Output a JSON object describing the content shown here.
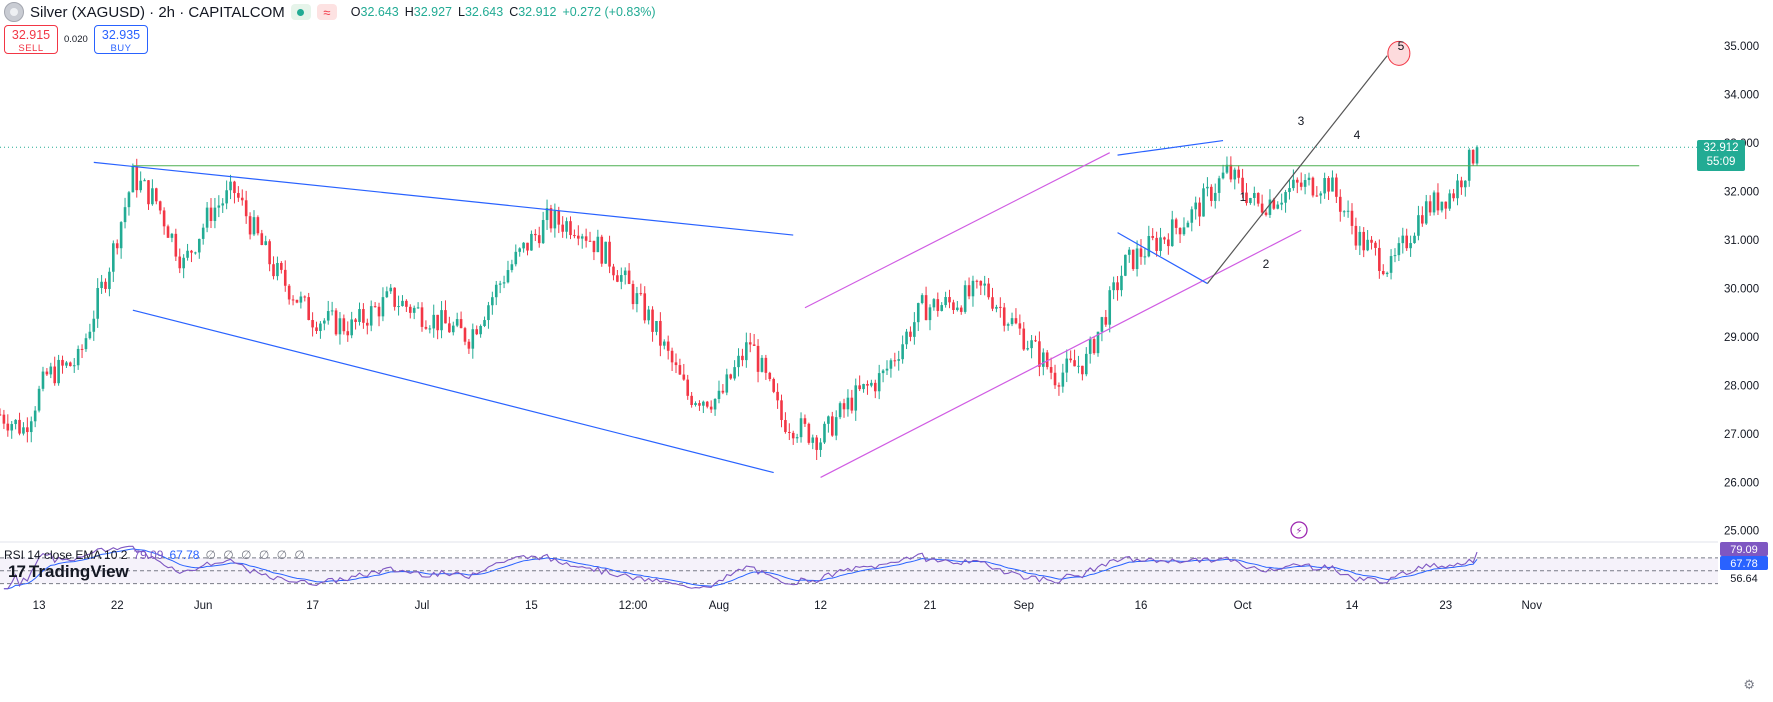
{
  "header": {
    "symbol_title": "Silver (XAGUSD) · 2h · CAPITALCOM",
    "wave_glyph": "≈",
    "ohlc": [
      {
        "k": "O",
        "v": "32.643"
      },
      {
        "k": "H",
        "v": "32.927"
      },
      {
        "k": "L",
        "v": "32.643"
      },
      {
        "k": "C",
        "v": "32.912"
      },
      {
        "k": "",
        "v": "+0.272 (+0.83%)"
      }
    ]
  },
  "quote": {
    "sell_price": "32.915",
    "sell_label": "SELL",
    "spread": "0.020",
    "buy_price": "32.935",
    "buy_label": "BUY"
  },
  "rsi_legend": {
    "label": "RSI 14 close EMA 10 2",
    "value1": "79.09",
    "value2": "67.78",
    "eye_icons": "∅ ∅ ∅ ∅ ∅ ∅"
  },
  "logo": {
    "mark": "17",
    "text": "TradingView"
  },
  "price_badge": {
    "price": "32.912",
    "countdown": "55:09"
  },
  "colors": {
    "up": "#22ab94",
    "down": "#f23645",
    "trend": "#2962ff",
    "channel": "#d05ce3",
    "support": "#4caf50",
    "rsi": "#7e57c2",
    "rsi_ema": "#2962ff"
  },
  "chart_data": {
    "type": "candlestick",
    "title": "",
    "y_axis": {
      "ticks": [
        "25.000",
        "26.000",
        "27.000",
        "28.000",
        "29.000",
        "30.000",
        "31.000",
        "32.000",
        "33.000",
        "34.000",
        "35.000"
      ],
      "range": [
        24.85,
        35.95
      ]
    },
    "x_axis": {
      "tick_labels": [
        "13",
        "22",
        "Jun",
        "17",
        "Jul",
        "15",
        "12:00",
        "Aug",
        "12",
        "21",
        "Sep",
        "16",
        "Oct",
        "14",
        "23",
        "Nov"
      ],
      "range_index": [
        0,
        400
      ]
    },
    "price_path": [
      [
        0,
        27.4
      ],
      [
        6,
        27.1
      ],
      [
        12,
        28.2
      ],
      [
        20,
        28.5
      ],
      [
        28,
        30.5
      ],
      [
        34,
        32.3
      ],
      [
        40,
        31.8
      ],
      [
        47,
        30.5
      ],
      [
        54,
        31.6
      ],
      [
        60,
        32.0
      ],
      [
        70,
        30.4
      ],
      [
        80,
        29.4
      ],
      [
        90,
        29.2
      ],
      [
        100,
        29.8
      ],
      [
        110,
        29.4
      ],
      [
        120,
        29.0
      ],
      [
        130,
        30.4
      ],
      [
        140,
        31.4
      ],
      [
        148,
        31.3
      ],
      [
        156,
        30.6
      ],
      [
        166,
        29.4
      ],
      [
        176,
        27.8
      ],
      [
        184,
        27.7
      ],
      [
        192,
        28.9
      ],
      [
        200,
        27.3
      ],
      [
        210,
        26.9
      ],
      [
        218,
        27.7
      ],
      [
        226,
        28.2
      ],
      [
        236,
        29.6
      ],
      [
        244,
        29.7
      ],
      [
        252,
        30.0
      ],
      [
        260,
        29.2
      ],
      [
        270,
        28.2
      ],
      [
        278,
        28.5
      ],
      [
        288,
        30.5
      ],
      [
        300,
        31.2
      ],
      [
        306,
        31.6
      ],
      [
        314,
        32.4
      ],
      [
        322,
        31.7
      ],
      [
        332,
        32.1
      ],
      [
        340,
        32.2
      ],
      [
        348,
        31.0
      ],
      [
        356,
        30.4
      ],
      [
        364,
        31.6
      ],
      [
        372,
        32.0
      ],
      [
        378,
        32.9
      ]
    ],
    "annotations": {
      "wave_labels": [
        {
          "label": "1",
          "x": 357,
          "y": 31.9
        },
        {
          "label": "2",
          "x": 363,
          "y": 30.5
        },
        {
          "label": "3",
          "x": 380,
          "y": 33.4
        },
        {
          "label": "4",
          "x": 398,
          "y": 33.1
        },
        {
          "label": "5",
          "x": 412,
          "y": 35.0
        }
      ],
      "current_price": 32.912,
      "support_level": 32.53
    },
    "rsi": {
      "levels": [
        70,
        50,
        30
      ],
      "last_values": [
        79.09,
        67.78
      ],
      "badges": [
        "79.09",
        "67.78",
        "56.64"
      ]
    }
  }
}
